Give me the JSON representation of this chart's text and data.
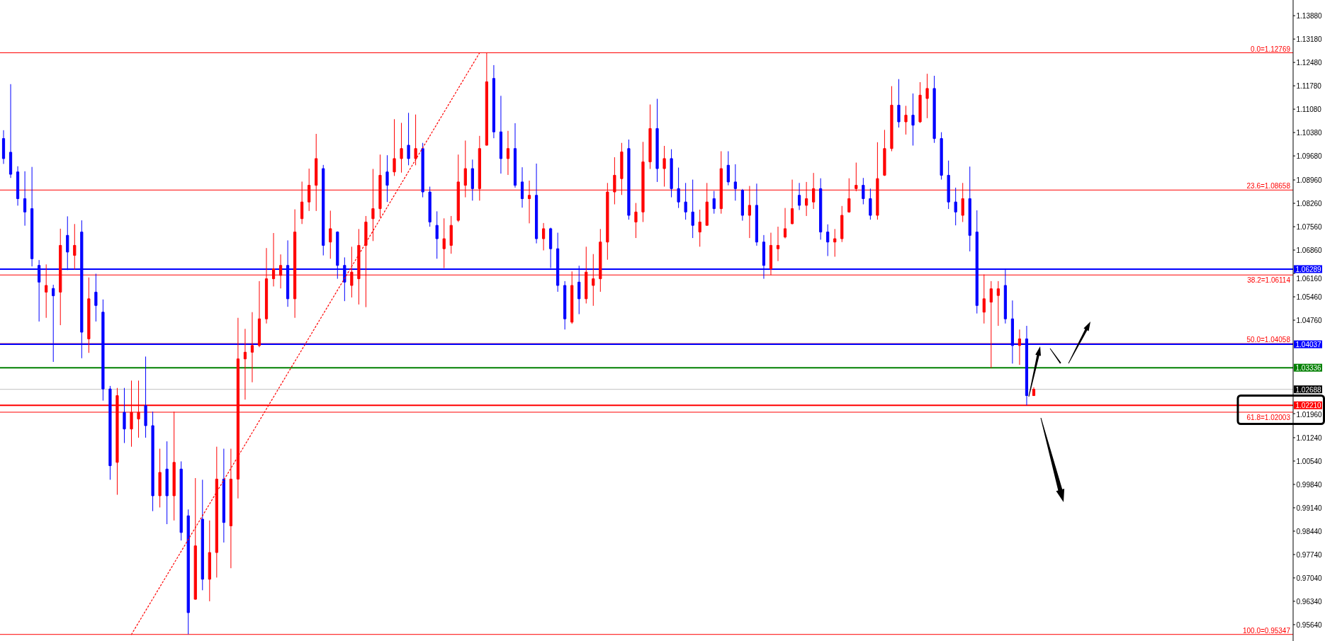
{
  "chart_data": {
    "type": "candlestick",
    "categories": [
      null,
      null,
      null,
      null,
      null,
      null,
      null,
      null,
      null,
      null,
      null,
      null,
      null,
      null,
      null,
      null,
      null,
      null,
      null,
      null,
      null,
      null,
      null,
      null,
      null,
      null,
      null,
      null,
      null,
      null,
      null,
      null,
      null,
      null,
      null,
      null,
      null,
      null,
      null,
      null,
      null,
      null,
      null,
      null,
      null,
      null,
      null,
      null,
      null,
      null,
      null,
      null,
      null,
      null,
      null,
      null,
      null,
      null,
      null,
      null,
      null,
      null,
      null,
      null,
      null,
      null,
      null,
      null,
      null,
      null,
      null,
      null,
      null,
      null,
      null,
      null,
      null,
      null,
      null,
      null,
      null,
      null,
      null,
      null,
      null,
      null,
      null,
      null,
      null,
      null,
      null,
      null,
      null,
      null,
      null,
      null,
      null,
      null,
      null,
      null,
      null,
      null,
      null,
      null,
      null,
      null,
      null,
      null,
      null,
      null,
      null,
      null,
      null,
      null,
      null,
      null,
      null,
      null,
      null,
      null,
      null,
      null,
      null,
      null,
      null,
      null,
      null,
      null,
      null,
      null,
      null,
      null,
      null,
      null,
      null,
      null,
      null,
      null,
      null,
      null,
      null,
      null,
      null,
      null,
      null,
      null,
      null,
      null,
      null,
      null,
      null,
      null,
      null,
      null,
      null,
      null,
      null,
      null,
      null,
      null,
      null,
      null,
      null,
      null,
      null,
      null,
      null,
      null,
      null,
      null,
      null,
      null,
      null,
      null,
      null,
      null,
      null,
      null,
      null,
      null,
      null,
      null
    ],
    "ohlc": [
      [
        1.102,
        1.1045,
        1.0944,
        1.096
      ],
      [
        1.0979,
        1.1183,
        1.0902,
        1.0913
      ],
      [
        1.092,
        1.0937,
        1.0819,
        1.084
      ],
      [
        1.084,
        1.0922,
        1.0759,
        1.08
      ],
      [
        1.081,
        1.0935,
        1.0637,
        1.066
      ],
      [
        1.064,
        1.0656,
        1.0472,
        1.059
      ],
      [
        1.056,
        1.0643,
        1.0483,
        1.058
      ],
      [
        1.0571,
        1.0582,
        1.0351,
        1.0549
      ],
      [
        1.056,
        1.075,
        1.0461,
        1.07
      ],
      [
        1.073,
        1.0787,
        1.0626,
        1.068
      ],
      [
        1.067,
        1.0764,
        1.0628,
        1.07
      ],
      [
        1.074,
        1.0775,
        1.0362,
        1.044
      ],
      [
        1.042,
        1.0604,
        1.0378,
        1.054
      ],
      [
        1.056,
        1.0615,
        1.0472,
        1.052
      ],
      [
        1.05,
        1.0538,
        1.0235,
        1.027
      ],
      [
        1.027,
        1.0279,
        0.9998,
        1.004
      ],
      [
        1.005,
        1.0273,
        0.9953,
        1.025
      ],
      [
        1.02,
        1.0273,
        1.0108,
        1.015
      ],
      [
        1.015,
        1.0295,
        1.0097,
        1.02
      ],
      [
        1.018,
        1.0295,
        1.0124,
        1.02
      ],
      [
        1.022,
        1.0367,
        1.0124,
        1.016
      ],
      [
        1.016,
        1.0202,
        0.9904,
        0.995
      ],
      [
        0.995,
        1.0091,
        0.9915,
        1.002
      ],
      [
        1.003,
        1.0113,
        0.9865,
        0.995
      ],
      [
        0.995,
        1.0202,
        0.9876,
        1.005
      ],
      [
        1.003,
        1.0053,
        0.9816,
        0.984
      ],
      [
        0.989,
        0.9909,
        0.9535,
        0.96
      ],
      [
        0.964,
        1.0003,
        0.9639,
        0.98
      ],
      [
        0.988,
        0.9998,
        0.9667,
        0.97
      ],
      [
        0.97,
        0.9876,
        0.9634,
        0.978
      ],
      [
        0.978,
        1.0097,
        0.9705,
        1.0
      ],
      [
        1.0,
        1.0091,
        0.981,
        0.987
      ],
      [
        0.986,
        1.0091,
        0.9733,
        1.0
      ],
      [
        1.0,
        1.0483,
        0.9942,
        1.036
      ],
      [
        1.036,
        1.045,
        1.0238,
        1.038
      ],
      [
        1.038,
        1.05,
        1.029,
        1.04
      ],
      [
        1.04,
        1.0593,
        1.0395,
        1.048
      ],
      [
        1.048,
        1.0692,
        1.0466,
        1.06
      ],
      [
        1.06,
        1.0737,
        1.0577,
        1.063
      ],
      [
        1.061,
        1.0673,
        1.0571,
        1.064
      ],
      [
        1.064,
        1.0715,
        1.0516,
        1.054
      ],
      [
        1.054,
        1.0808,
        1.0483,
        1.074
      ],
      [
        1.078,
        1.0891,
        1.0764,
        1.083
      ],
      [
        1.083,
        1.093,
        1.0803,
        1.088
      ],
      [
        1.088,
        1.1034,
        1.0803,
        1.096
      ],
      [
        1.093,
        1.0941,
        1.067,
        1.07
      ],
      [
        1.071,
        1.0804,
        1.066,
        1.075
      ],
      [
        1.074,
        1.0742,
        1.06,
        1.064
      ],
      [
        1.064,
        1.0664,
        1.0533,
        1.059
      ],
      [
        1.058,
        1.0696,
        1.0544,
        1.062
      ],
      [
        1.06,
        1.0749,
        1.0523,
        1.07
      ],
      [
        1.07,
        1.0788,
        1.0515,
        1.077
      ],
      [
        1.078,
        1.0929,
        1.0713,
        1.081
      ],
      [
        1.081,
        1.0972,
        1.0784,
        1.091
      ],
      [
        1.092,
        1.097,
        1.083,
        1.088
      ],
      [
        1.092,
        1.1078,
        1.0908,
        1.096
      ],
      [
        1.096,
        1.1067,
        1.0918,
        1.099
      ],
      [
        1.1,
        1.1097,
        1.094,
        1.096
      ],
      [
        1.096,
        1.1092,
        1.094,
        1.099
      ],
      [
        1.099,
        1.1007,
        1.0844,
        1.086
      ],
      [
        1.086,
        1.0876,
        1.0756,
        1.077
      ],
      [
        1.076,
        1.0802,
        1.066,
        1.072
      ],
      [
        1.069,
        1.0781,
        1.0632,
        1.072
      ],
      [
        1.07,
        1.0788,
        1.0675,
        1.076
      ],
      [
        1.0775,
        1.0972,
        1.077,
        1.089
      ],
      [
        1.088,
        1.1014,
        1.0844,
        1.093
      ],
      [
        1.093,
        1.0957,
        1.0834,
        1.087
      ],
      [
        1.087,
        1.1028,
        1.0834,
        1.099
      ],
      [
        1.1,
        1.1277,
        1.0999,
        1.119
      ],
      [
        1.12,
        1.124,
        1.1021,
        1.104
      ],
      [
        1.104,
        1.1148,
        1.0915,
        1.096
      ],
      [
        1.096,
        1.1043,
        1.0911,
        1.099
      ],
      [
        1.099,
        1.1066,
        1.0873,
        1.088
      ],
      [
        1.089,
        1.0934,
        1.0813,
        1.084
      ],
      [
        1.084,
        1.0894,
        1.0766,
        1.085
      ],
      [
        1.085,
        1.0945,
        1.0706,
        1.072
      ],
      [
        1.072,
        1.0767,
        1.0685,
        1.075
      ],
      [
        1.075,
        1.0753,
        1.0632,
        1.069
      ],
      [
        1.069,
        1.0738,
        1.0561,
        1.058
      ],
      [
        1.058,
        1.0593,
        1.0448,
        1.048
      ],
      [
        1.047,
        1.0622,
        1.0465,
        1.058
      ],
      [
        1.059,
        1.0639,
        1.0494,
        1.054
      ],
      [
        1.054,
        1.0696,
        1.0526,
        1.062
      ],
      [
        1.058,
        1.0674,
        1.0519,
        1.06
      ],
      [
        1.06,
        1.0749,
        1.0561,
        1.071
      ],
      [
        1.071,
        1.0887,
        1.0657,
        1.086
      ],
      [
        1.086,
        1.0964,
        1.0823,
        1.091
      ],
      [
        1.09,
        1.1007,
        1.0851,
        1.098
      ],
      [
        1.099,
        1.1017,
        1.0777,
        1.079
      ],
      [
        1.077,
        1.0827,
        1.0722,
        1.08
      ],
      [
        1.08,
        1.101,
        1.077,
        1.095
      ],
      [
        1.095,
        1.1122,
        1.0929,
        1.105
      ],
      [
        1.105,
        1.1139,
        1.089,
        1.093
      ],
      [
        1.093,
        1.0998,
        1.0876,
        1.096
      ],
      [
        1.096,
        1.0988,
        1.0844,
        1.087
      ],
      [
        1.087,
        1.0933,
        1.0812,
        1.083
      ],
      [
        1.083,
        1.0887,
        1.0777,
        1.08
      ],
      [
        1.08,
        1.0897,
        1.0722,
        1.076
      ],
      [
        1.074,
        1.0807,
        1.0696,
        1.077
      ],
      [
        1.076,
        1.0887,
        1.076,
        1.083
      ],
      [
        1.084,
        1.0863,
        1.0795,
        1.081
      ],
      [
        1.081,
        1.0982,
        1.0795,
        1.093
      ],
      [
        1.094,
        1.0982,
        1.088,
        1.089
      ],
      [
        1.089,
        1.0943,
        1.0834,
        1.087
      ],
      [
        1.0865,
        1.0869,
        1.0774,
        1.079
      ],
      [
        1.079,
        1.0878,
        1.0722,
        1.082
      ],
      [
        1.082,
        1.0885,
        1.0699,
        1.071
      ],
      [
        1.071,
        1.0731,
        1.06,
        1.064
      ],
      [
        1.063,
        1.0738,
        1.0611,
        1.07
      ],
      [
        1.069,
        1.0756,
        1.0653,
        1.07
      ],
      [
        1.0725,
        1.0812,
        1.0721,
        1.075
      ],
      [
        1.0765,
        1.0897,
        1.0763,
        1.081
      ],
      [
        1.085,
        1.0887,
        1.0806,
        1.082
      ],
      [
        1.082,
        1.089,
        1.0788,
        1.084
      ],
      [
        1.083,
        1.0917,
        1.0809,
        1.087
      ],
      [
        1.087,
        1.0901,
        1.0717,
        1.074
      ],
      [
        1.074,
        1.0763,
        1.0668,
        1.071
      ],
      [
        1.071,
        1.0749,
        1.0666,
        1.072
      ],
      [
        1.072,
        1.0818,
        1.071,
        1.079
      ],
      [
        1.08,
        1.0901,
        1.0798,
        1.084
      ],
      [
        1.087,
        1.0948,
        1.0862,
        1.088
      ],
      [
        1.088,
        1.0902,
        1.0823,
        1.084
      ],
      [
        1.084,
        1.087,
        1.0777,
        1.079
      ],
      [
        1.079,
        1.1009,
        1.0777,
        1.09
      ],
      [
        1.091,
        1.1046,
        1.0908,
        1.099
      ],
      [
        1.099,
        1.1177,
        1.0982,
        1.112
      ],
      [
        1.112,
        1.1198,
        1.1053,
        1.107
      ],
      [
        1.107,
        1.1118,
        1.1032,
        1.109
      ],
      [
        1.109,
        1.1155,
        1.0999,
        1.106
      ],
      [
        1.107,
        1.1189,
        1.1067,
        1.115
      ],
      [
        1.114,
        1.1214,
        1.1081,
        1.117
      ],
      [
        1.117,
        1.1208,
        1.1007,
        1.102
      ],
      [
        1.102,
        1.1039,
        1.0897,
        1.091
      ],
      [
        1.091,
        1.0954,
        1.0809,
        1.083
      ],
      [
        1.083,
        1.0873,
        1.076,
        1.08
      ],
      [
        1.079,
        1.0887,
        1.077,
        1.084
      ],
      [
        1.084,
        1.0936,
        1.0682,
        1.073
      ],
      [
        1.074,
        1.0805,
        1.0496,
        1.052
      ],
      [
        1.05,
        1.0613,
        1.0466,
        1.054
      ],
      [
        1.053,
        1.0593,
        1.0333,
        1.057
      ],
      [
        1.055,
        1.0593,
        1.0459,
        1.057
      ],
      [
        1.058,
        1.0631,
        1.0466,
        1.048
      ],
      [
        1.048,
        1.0535,
        1.0346,
        1.04
      ],
      [
        1.04,
        1.0448,
        1.0342,
        1.042
      ],
      [
        1.042,
        1.0459,
        1.0221,
        1.025
      ],
      [
        1.025,
        1.0275,
        1.025,
        1.0269
      ],
      null,
      null,
      null,
      null,
      null,
      null,
      null,
      null,
      null,
      null,
      null,
      null,
      null,
      null,
      null,
      null,
      null,
      null,
      null,
      null,
      null,
      null,
      null,
      null,
      null,
      null,
      null,
      null,
      null,
      null,
      null,
      null,
      null,
      null,
      null,
      null
    ],
    "colors": [
      "#0000ff",
      "#0000ff",
      "#0000ff",
      "#0000ff",
      "#0000ff",
      "#0000ff",
      "#ff0000",
      "#0000ff",
      "#ff0000",
      "#0000ff",
      "#ff0000",
      "#0000ff",
      "#ff0000",
      "#0000ff",
      "#0000ff",
      "#0000ff",
      "#ff0000",
      "#0000ff",
      "#ff0000",
      "#ff0000",
      "#0000ff",
      "#0000ff",
      "#ff0000",
      "#0000ff",
      "#ff0000",
      "#0000ff",
      "#0000ff",
      "#ff0000",
      "#0000ff",
      "#ff0000",
      "#ff0000",
      "#0000ff",
      "#ff0000",
      "#ff0000",
      "#ff0000",
      "#ff0000",
      "#ff0000",
      "#ff0000",
      "#ff0000",
      "#ff0000",
      "#0000ff",
      "#ff0000",
      "#ff0000",
      "#ff0000",
      "#ff0000",
      "#0000ff",
      "#ff0000",
      "#0000ff",
      "#0000ff",
      "#ff0000",
      "#ff0000",
      "#ff0000",
      "#ff0000",
      "#ff0000",
      "#0000ff",
      "#ff0000",
      "#ff0000",
      "#0000ff",
      "#ff0000",
      "#0000ff",
      "#0000ff",
      "#0000ff",
      "#ff0000",
      "#ff0000",
      "#ff0000",
      "#ff0000",
      "#0000ff",
      "#ff0000",
      "#ff0000",
      "#0000ff",
      "#0000ff",
      "#ff0000",
      "#0000ff",
      "#0000ff",
      "#ff0000",
      "#0000ff",
      "#ff0000",
      "#0000ff",
      "#0000ff",
      "#0000ff",
      "#ff0000",
      "#0000ff",
      "#ff0000",
      "#ff0000",
      "#ff0000",
      "#ff0000",
      "#ff0000",
      "#ff0000",
      "#0000ff",
      "#ff0000",
      "#ff0000",
      "#ff0000",
      "#0000ff",
      "#ff0000",
      "#0000ff",
      "#0000ff",
      "#0000ff",
      "#0000ff",
      "#ff0000",
      "#ff0000",
      "#0000ff",
      "#ff0000",
      "#0000ff",
      "#0000ff",
      "#0000ff",
      "#ff0000",
      "#0000ff",
      "#0000ff",
      "#ff0000",
      "#ff0000",
      "#ff0000",
      "#ff0000",
      "#0000ff",
      "#ff0000",
      "#ff0000",
      "#0000ff",
      "#0000ff",
      "#ff0000",
      "#ff0000",
      "#ff0000",
      "#ff0000",
      "#0000ff",
      "#0000ff",
      "#ff0000",
      "#ff0000",
      "#ff0000",
      "#0000ff",
      "#ff0000",
      "#0000ff",
      "#ff0000",
      "#ff0000",
      "#0000ff",
      "#0000ff",
      "#0000ff",
      "#0000ff",
      "#ff0000",
      "#0000ff",
      "#0000ff",
      "#ff0000",
      "#ff0000",
      "#ff0000",
      "#0000ff",
      "#0000ff",
      "#ff0000",
      "#0000ff",
      "#ff0000",
      null,
      null,
      null,
      null,
      null,
      null,
      null,
      null,
      null,
      null,
      null,
      null,
      null,
      null,
      null,
      null,
      null,
      null,
      null,
      null,
      null,
      null,
      null,
      null,
      null,
      null,
      null,
      null,
      null,
      null,
      null,
      null,
      null,
      null,
      null,
      null
    ],
    "series": [
      {
        "type": "line",
        "color": "#ff0000",
        "line_style": "dotted",
        "values": [
          null,
          null,
          null,
          null,
          null,
          null,
          null,
          null,
          null,
          null,
          null,
          null,
          null,
          null,
          null,
          null,
          null,
          null,
          0.95347,
          null,
          null,
          null,
          null,
          null,
          null,
          null,
          null,
          null,
          null,
          null,
          null,
          null,
          null,
          null,
          null,
          null,
          null,
          null,
          null,
          null,
          null,
          null,
          null,
          null,
          null,
          null,
          null,
          null,
          null,
          null,
          null,
          null,
          null,
          null,
          null,
          null,
          null,
          null,
          null,
          null,
          null,
          null,
          null,
          null,
          null,
          null,
          null,
          1.12769,
          null,
          null,
          null,
          null,
          null,
          null,
          null,
          null,
          null,
          null,
          null,
          null,
          null,
          null,
          null,
          null,
          null,
          null,
          null,
          null,
          null,
          null,
          null,
          null,
          null,
          null,
          null,
          null,
          null,
          null,
          null,
          null,
          null,
          null,
          null,
          null,
          null,
          null,
          null,
          null,
          null,
          null,
          null,
          null,
          null,
          null,
          null,
          null,
          null,
          null,
          null,
          null,
          null,
          null,
          null,
          null,
          null,
          null,
          null,
          null,
          null,
          null,
          null,
          null,
          null,
          null,
          null,
          null,
          null,
          null,
          null,
          null,
          null,
          null,
          null,
          null,
          null,
          null,
          null,
          null,
          null,
          null,
          null,
          null,
          null,
          null,
          null,
          null,
          null,
          null,
          null,
          null,
          null,
          null,
          null,
          null,
          null,
          null,
          null,
          null,
          null,
          null,
          null,
          null,
          null,
          null,
          null,
          null,
          null,
          null,
          null,
          null,
          null,
          null
        ]
      }
    ],
    "ylim": [
      0.9515,
      1.1435
    ],
    "yticks": [
      {
        "value": 1.1388,
        "label": "1.13880"
      },
      {
        "value": 1.1318,
        "label": "1.13180"
      },
      {
        "value": 1.1248,
        "label": "1.12480"
      },
      {
        "value": 1.1178,
        "label": "1.11780"
      },
      {
        "value": 1.1108,
        "label": "1.11080"
      },
      {
        "value": 1.1038,
        "label": "1.10380"
      },
      {
        "value": 1.0968,
        "label": "1.09680"
      },
      {
        "value": 1.0896,
        "label": "1.08960"
      },
      {
        "value": 1.0826,
        "label": "1.08260"
      },
      {
        "value": 1.0756,
        "label": "1.07560"
      },
      {
        "value": 1.0686,
        "label": "1.06860"
      },
      {
        "value": 1.0616,
        "label": "1.06160"
      },
      {
        "value": 1.0546,
        "label": "1.05460"
      },
      {
        "value": 1.0476,
        "label": "1.04760"
      },
      {
        "value": 1.0196,
        "label": "1.01960"
      },
      {
        "value": 1.0124,
        "label": "1.01240"
      },
      {
        "value": 1.0054,
        "label": "1.00540"
      },
      {
        "value": 0.9984,
        "label": "0.99840"
      },
      {
        "value": 0.9914,
        "label": "0.99140"
      },
      {
        "value": 0.9844,
        "label": "0.98440"
      },
      {
        "value": 0.9774,
        "label": "0.97740"
      },
      {
        "value": 0.9704,
        "label": "0.97040"
      },
      {
        "value": 0.9634,
        "label": "0.96340"
      },
      {
        "value": 0.9564,
        "label": "0.95640"
      }
    ],
    "tick_labels": "y",
    "ref_lines": [
      {
        "axis": "y",
        "value": 1.12769,
        "color": "#ff0000"
      },
      {
        "axis": "y",
        "value": 1.08658,
        "color": "#ff0000"
      },
      {
        "axis": "y",
        "value": 1.06114,
        "color": "#ff0000"
      },
      {
        "axis": "y",
        "value": 1.04058,
        "color": "#ff0000"
      },
      {
        "axis": "y",
        "value": 1.02003,
        "color": "#ff0000"
      },
      {
        "axis": "y",
        "value": 0.95347,
        "color": "#ff0000"
      },
      {
        "axis": "y",
        "value": 1.06289,
        "label": "1.06289",
        "color": "#0000ff"
      },
      {
        "axis": "y",
        "value": 1.04037,
        "label": "1.04037",
        "color": "#0000ff"
      },
      {
        "axis": "y",
        "value": 1.03336,
        "label": "1.03336",
        "color": "#008000"
      },
      {
        "axis": "y",
        "value": 1.02688,
        "label": "1.02688",
        "color": "#c0c0c0"
      },
      {
        "axis": "y",
        "value": 1.0221,
        "label": "1.02210",
        "color": "#ff0000"
      }
    ],
    "annotations": [
      {
        "text": "0.0=1.12769",
        "y": 1.12769
      },
      {
        "text": "23.6=1.08658",
        "y": 1.08658
      },
      {
        "text": "38.2=1.06114",
        "y": 1.06114
      },
      {
        "text": "50.0=1.04058",
        "y": 1.04058
      },
      {
        "text": "61.8=1.02003",
        "y": 1.02003
      },
      {
        "text": "100.0=0.95347",
        "y": 0.95347
      }
    ]
  }
}
